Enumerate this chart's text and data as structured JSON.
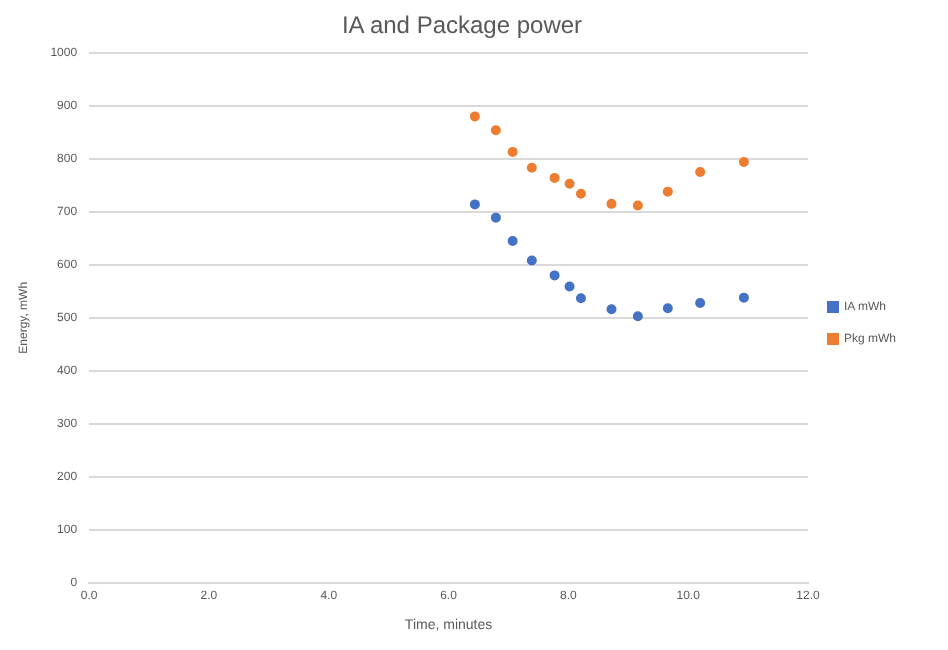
{
  "chart_data": {
    "type": "scatter",
    "title": "IA and Package power",
    "xlabel": "Time, minutes",
    "ylabel": "Energy, mWh",
    "x": [
      6.44,
      6.79,
      7.07,
      7.39,
      7.77,
      8.02,
      8.21,
      8.72,
      9.16,
      9.66,
      10.2,
      10.93
    ],
    "series": [
      {
        "name": "IA mWh",
        "color": "#4472c4",
        "values": [
          714,
          689,
          645,
          608,
          580,
          559,
          537,
          516,
          503,
          518,
          528,
          538
        ]
      },
      {
        "name": "Pkg mWh",
        "color": "#ed7d31",
        "values": [
          880,
          854,
          813,
          783,
          764,
          753,
          734,
          715,
          712,
          738,
          775,
          794
        ]
      }
    ],
    "xlim": [
      0,
      12
    ],
    "xticks": [
      {
        "value": 0,
        "label": "0.0"
      },
      {
        "value": 2,
        "label": "2.0"
      },
      {
        "value": 4,
        "label": "4.0"
      },
      {
        "value": 6,
        "label": "6.0"
      },
      {
        "value": 8,
        "label": "8.0"
      },
      {
        "value": 10,
        "label": "10.0"
      },
      {
        "value": 12,
        "label": "12.0"
      }
    ],
    "ylim": [
      0,
      1000
    ],
    "yticks": [
      0,
      100,
      200,
      300,
      400,
      500,
      600,
      700,
      800,
      900,
      1000
    ],
    "grid": "y",
    "legend": "right",
    "marker": "circle"
  }
}
